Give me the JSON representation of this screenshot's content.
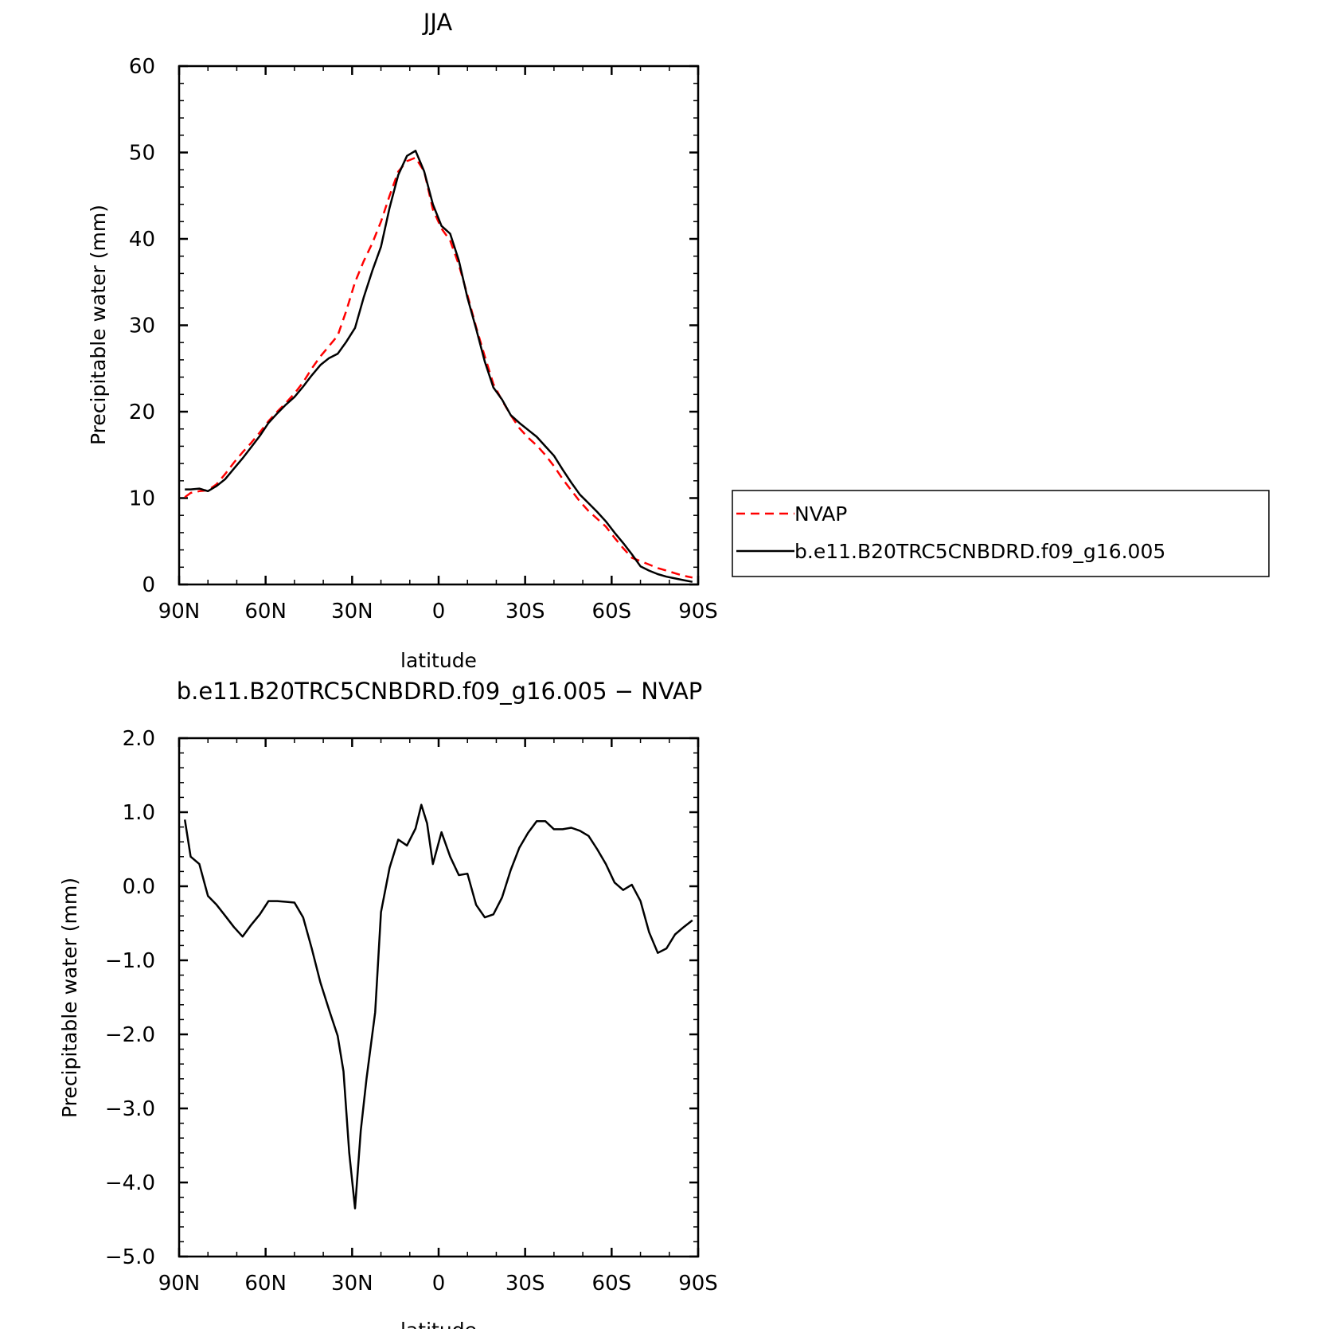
{
  "chart_data": [
    {
      "type": "line",
      "title": "JJA",
      "xlabel": "latitude",
      "ylabel": "Precipitable water (mm)",
      "xlim": [
        -90,
        90
      ],
      "ylim": [
        0,
        60
      ],
      "x_ticks": [
        {
          "value": -90,
          "label": "90N"
        },
        {
          "value": -60,
          "label": "60N"
        },
        {
          "value": -30,
          "label": "30N"
        },
        {
          "value": 0,
          "label": "0"
        },
        {
          "value": 30,
          "label": "30S"
        },
        {
          "value": 60,
          "label": "60S"
        },
        {
          "value": 90,
          "label": "90S"
        }
      ],
      "y_ticks": [
        {
          "value": 0,
          "label": "0"
        },
        {
          "value": 10,
          "label": "10"
        },
        {
          "value": 20,
          "label": "20"
        },
        {
          "value": 30,
          "label": "30"
        },
        {
          "value": 40,
          "label": "40"
        },
        {
          "value": 50,
          "label": "50"
        },
        {
          "value": 60,
          "label": "60"
        }
      ],
      "legend_position": "right",
      "series": [
        {
          "name": "NVAP",
          "color": "#ff0000",
          "dash": "dashed",
          "x": [
            -88,
            -86,
            -83,
            -80,
            -77,
            -74,
            -71,
            -68,
            -65,
            -62,
            -59,
            -56,
            -53,
            -50,
            -47,
            -44,
            -41,
            -38,
            -35,
            -32,
            -29,
            -26,
            -23,
            -20,
            -17,
            -14,
            -11,
            -8,
            -5,
            -2,
            1,
            4,
            7,
            10,
            13,
            16,
            19,
            22,
            25,
            28,
            31,
            34,
            37,
            40,
            43,
            46,
            49,
            52,
            55,
            58,
            61,
            64,
            67,
            70,
            73,
            76,
            79,
            82,
            85,
            88
          ],
          "values": [
            10.1,
            10.6,
            10.8,
            10.9,
            11.6,
            12.8,
            14.1,
            15.3,
            16.4,
            17.6,
            18.9,
            20.0,
            21.0,
            22.1,
            23.4,
            25.0,
            26.4,
            27.6,
            28.8,
            31.7,
            35.0,
            37.4,
            39.5,
            42.0,
            45.0,
            47.8,
            49.0,
            49.4,
            47.8,
            43.4,
            41.2,
            39.8,
            37.0,
            33.5,
            29.8,
            26.4,
            23.2,
            21.3,
            19.6,
            18.1,
            17.0,
            16.1,
            15.0,
            13.7,
            12.2,
            10.9,
            9.6,
            8.5,
            7.6,
            6.7,
            5.4,
            4.2,
            3.1,
            2.7,
            2.3,
            1.9,
            1.6,
            1.3,
            1.0,
            0.8
          ]
        },
        {
          "name": "b.e11.B20TRC5CNBDRD.f09_g16.005",
          "color": "#000000",
          "dash": "solid",
          "x": [
            -88,
            -86,
            -83,
            -80,
            -77,
            -74,
            -71,
            -68,
            -65,
            -62,
            -59,
            -56,
            -53,
            -50,
            -47,
            -44,
            -41,
            -38,
            -35,
            -32,
            -29,
            -26,
            -23,
            -20,
            -17,
            -14,
            -11,
            -8,
            -5,
            -2,
            1,
            4,
            7,
            10,
            13,
            16,
            19,
            22,
            25,
            28,
            31,
            34,
            37,
            40,
            43,
            46,
            49,
            52,
            55,
            58,
            61,
            64,
            67,
            70,
            73,
            76,
            79,
            82,
            85,
            88
          ],
          "values": [
            11.0,
            11.0,
            11.1,
            10.8,
            11.4,
            12.2,
            13.4,
            14.6,
            15.9,
            17.2,
            18.7,
            19.8,
            20.8,
            21.7,
            22.9,
            24.2,
            25.4,
            26.2,
            26.7,
            28.1,
            29.7,
            33.2,
            36.3,
            39.1,
            43.6,
            47.4,
            49.6,
            50.2,
            47.8,
            44.0,
            41.5,
            40.6,
            37.5,
            33.2,
            29.6,
            25.8,
            22.8,
            21.4,
            19.6,
            18.7,
            17.9,
            17.1,
            16.0,
            14.9,
            13.3,
            11.8,
            10.4,
            9.4,
            8.4,
            7.3,
            6.0,
            4.8,
            3.5,
            2.1,
            1.6,
            1.2,
            0.9,
            0.7,
            0.5,
            0.3
          ]
        }
      ]
    },
    {
      "type": "line",
      "title": "b.e11.B20TRC5CNBDRD.f09_g16.005 − NVAP",
      "xlabel": "latitude",
      "ylabel": "Precipitable water (mm)",
      "xlim": [
        -90,
        90
      ],
      "ylim": [
        -5.0,
        2.0
      ],
      "x_ticks": [
        {
          "value": -90,
          "label": "90N"
        },
        {
          "value": -60,
          "label": "60N"
        },
        {
          "value": -30,
          "label": "30N"
        },
        {
          "value": 0,
          "label": "0"
        },
        {
          "value": 30,
          "label": "30S"
        },
        {
          "value": 60,
          "label": "60S"
        },
        {
          "value": 90,
          "label": "90S"
        }
      ],
      "y_ticks": [
        {
          "value": -5,
          "label": "−5.0"
        },
        {
          "value": -4,
          "label": "−4.0"
        },
        {
          "value": -3,
          "label": "−3.0"
        },
        {
          "value": -2,
          "label": "−2.0"
        },
        {
          "value": -1,
          "label": "−1.0"
        },
        {
          "value": 0,
          "label": "0.0"
        },
        {
          "value": 1,
          "label": "1.0"
        },
        {
          "value": 2,
          "label": "2.0"
        }
      ],
      "series": [
        {
          "color": "#000000",
          "dash": "solid",
          "x": [
            -88,
            -86,
            -83,
            -80,
            -77,
            -74,
            -71,
            -68,
            -65,
            -62,
            -59,
            -56,
            -53,
            -50,
            -47,
            -44,
            -41,
            -38,
            -35,
            -33,
            -31,
            -29,
            -27,
            -25,
            -22,
            -20,
            -17,
            -14,
            -11,
            -8,
            -6,
            -4,
            -2,
            1,
            4,
            7,
            10,
            13,
            16,
            19,
            22,
            25,
            28,
            31,
            34,
            37,
            40,
            43,
            46,
            49,
            52,
            55,
            58,
            61,
            64,
            67,
            70,
            73,
            76,
            79,
            82,
            85,
            88
          ],
          "values": [
            0.9,
            0.4,
            0.3,
            -0.13,
            -0.25,
            -0.4,
            -0.55,
            -0.68,
            -0.52,
            -0.38,
            -0.2,
            -0.2,
            -0.21,
            -0.22,
            -0.42,
            -0.84,
            -1.3,
            -1.67,
            -2.02,
            -2.5,
            -3.6,
            -4.35,
            -3.3,
            -2.6,
            -1.7,
            -0.35,
            0.25,
            0.63,
            0.55,
            0.78,
            1.1,
            0.85,
            0.3,
            0.73,
            0.4,
            0.15,
            0.17,
            -0.25,
            -0.42,
            -0.38,
            -0.15,
            0.22,
            0.52,
            0.72,
            0.88,
            0.88,
            0.77,
            0.77,
            0.79,
            0.75,
            0.68,
            0.5,
            0.3,
            0.05,
            -0.05,
            0.02,
            -0.2,
            -0.62,
            -0.9,
            -0.84,
            -0.65,
            -0.55,
            -0.46
          ]
        }
      ]
    }
  ]
}
